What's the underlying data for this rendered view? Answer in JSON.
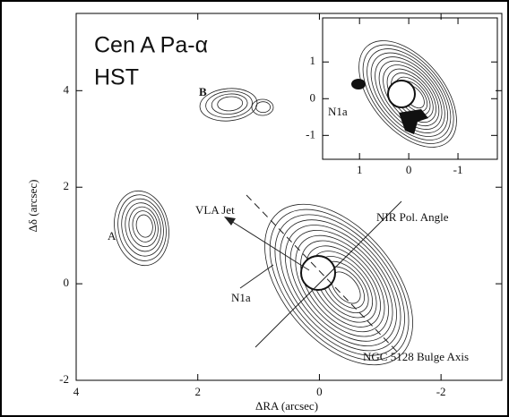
{
  "chart_data": [
    {
      "type": "contour",
      "title": "Cen A Pa-α",
      "subtitle": "HST",
      "x_label": "ΔRA (arcsec)",
      "y_label": "Δδ (arcsec)",
      "xlim": [
        4,
        -3
      ],
      "ylim": [
        -2,
        5.6
      ],
      "xticks": [
        4,
        2,
        0,
        -2
      ],
      "yticks": [
        -2,
        0,
        2,
        4
      ],
      "annotations": [
        "A",
        "B",
        "VLA Jet",
        "NIR Pol. Angle",
        "N1a",
        "NGC 5128 Bulge Axis"
      ]
    },
    {
      "type": "contour",
      "xlim": [
        1.75,
        -1.8
      ],
      "ylim": [
        -1.65,
        2.2
      ],
      "xticks": [
        1,
        0,
        -1
      ],
      "yticks": [
        -1,
        0,
        1
      ],
      "annotations": [
        "N1a"
      ]
    }
  ]
}
